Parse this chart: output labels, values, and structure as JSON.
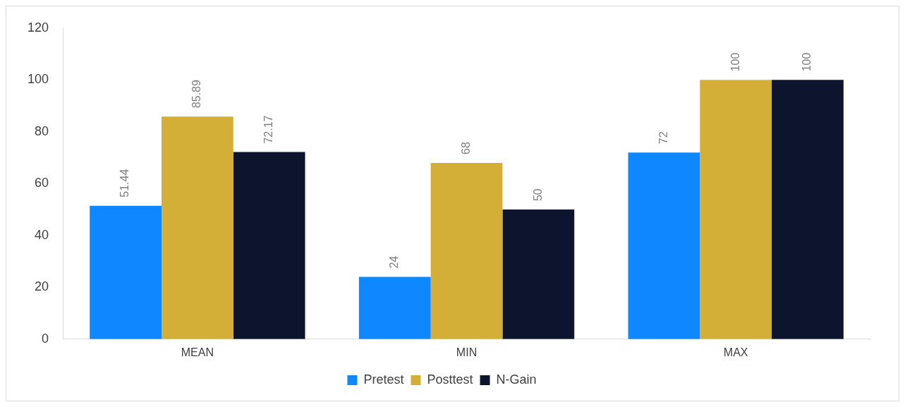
{
  "chart_data": {
    "type": "bar",
    "categories": [
      "MEAN",
      "MIN",
      "MAX"
    ],
    "series": [
      {
        "name": "Pretest",
        "color": "#0f87ff",
        "values": [
          51.44,
          24,
          72
        ]
      },
      {
        "name": "Posttest",
        "color": "#d4af37",
        "values": [
          85.89,
          68,
          100
        ]
      },
      {
        "name": "N-Gain",
        "color": "#0c142e",
        "values": [
          72.17,
          50,
          100
        ]
      }
    ],
    "ylim": [
      0,
      120
    ],
    "yticks": [
      0,
      20,
      40,
      60,
      80,
      100,
      120
    ],
    "grid": false,
    "legend": "bottom",
    "data_labels": true
  }
}
